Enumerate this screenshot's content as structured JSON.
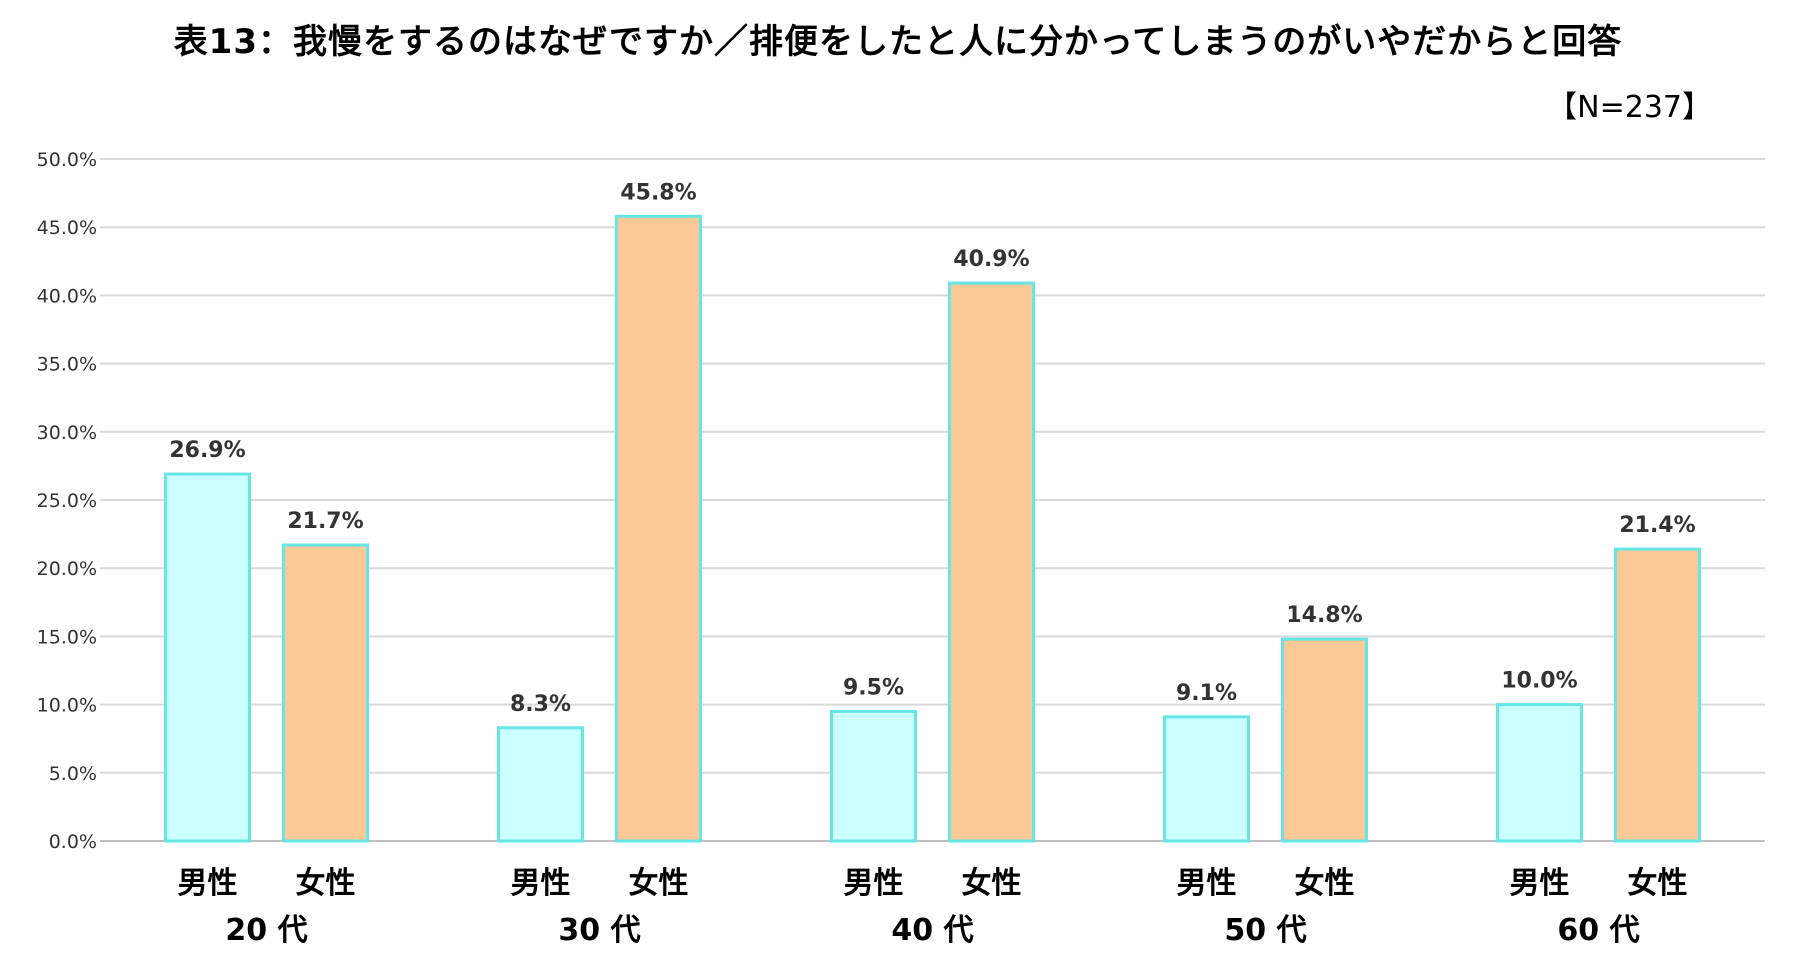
{
  "title": "表13：我慢をするのはなぜですか／排便をしたと人に分かってしまうのがいやだからと回答",
  "sample_size": "【N=237】",
  "chart_data": {
    "type": "bar",
    "categories": [
      "20 代",
      "30 代",
      "40 代",
      "50 代",
      "60 代"
    ],
    "series": [
      {
        "name": "男性",
        "values": [
          26.9,
          8.3,
          9.5,
          9.1,
          10.0
        ],
        "color": "#ccffff",
        "border": "#66e6e6"
      },
      {
        "name": "女性",
        "values": [
          21.7,
          45.8,
          40.9,
          14.8,
          21.4
        ],
        "color": "#fcc896",
        "border": "#66e6e6"
      }
    ],
    "data_labels": [
      [
        "26.9%",
        "8.3%",
        "9.5%",
        "9.1%",
        "10.0%"
      ],
      [
        "21.7%",
        "45.8%",
        "40.9%",
        "14.8%",
        "21.4%"
      ]
    ],
    "yticks": [
      "0.0%",
      "5.0%",
      "10.0%",
      "15.0%",
      "20.0%",
      "25.0%",
      "30.0%",
      "35.0%",
      "40.0%",
      "45.0%",
      "50.0%"
    ],
    "ylim": [
      0,
      50
    ],
    "grid": true,
    "legend": "none",
    "gridline_color": "#d9d9d9"
  }
}
